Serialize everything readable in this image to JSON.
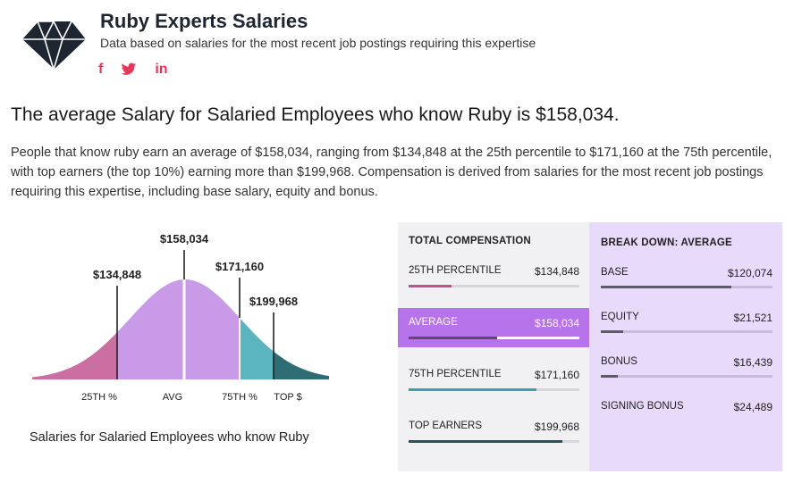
{
  "header": {
    "title": "Ruby Experts Salaries",
    "subtitle": "Data based on salaries for the most recent job postings requiring this expertise",
    "social": [
      {
        "icon": "facebook-icon",
        "glyph": "f"
      },
      {
        "icon": "twitter-icon",
        "glyph": "🐦"
      },
      {
        "icon": "linkedin-icon",
        "glyph": "in"
      }
    ],
    "accent": "#e8355a"
  },
  "headline": "The average Salary for Salaried Employees who know Ruby is $158,034.",
  "paragraph": "People that know ruby earn an average of $158,034, ranging from $134,848 at the 25th percentile to $171,160 at the 75th percentile, with top earners (the top 10%) earning more than $199,968. Compensation is derived from salaries for the most recent job postings requiring this expertise, including base salary, equity and bonus.",
  "chart_data": {
    "type": "area",
    "markers": [
      {
        "value": 134848,
        "label": "$134,848"
      },
      {
        "value": 158034,
        "label": "$158,034"
      },
      {
        "value": 171160,
        "label": "$171,160"
      },
      {
        "value": 199968,
        "label": "$199,968"
      }
    ],
    "segments": [
      {
        "name": "25TH %",
        "color": "#cb6fa2"
      },
      {
        "name": "AVG",
        "color": "#c89ae8"
      },
      {
        "name": "75TH %",
        "color": "#5ab5c0"
      },
      {
        "name": "TOP $",
        "color": "#2d6d73"
      }
    ],
    "caption": "Salaries for Salaried Employees who know Ruby"
  },
  "total_compensation": {
    "title": "TOTAL COMPENSATION",
    "rows": [
      {
        "label": "25TH PERCENTILE",
        "value": "$134,848",
        "fraction": 0.25,
        "color": "#c2508a",
        "active": false
      },
      {
        "label": "AVERAGE",
        "value": "$158,034",
        "fraction": 0.52,
        "color": "#5b4b6e",
        "active": true
      },
      {
        "label": "75TH PERCENTILE",
        "value": "$171,160",
        "fraction": 0.75,
        "color": "#3aa0ad",
        "active": false
      },
      {
        "label": "TOP EARNERS",
        "value": "$199,968",
        "fraction": 0.9,
        "color": "#24535a",
        "active": false
      }
    ]
  },
  "breakdown": {
    "title": "BREAK DOWN: AVERAGE",
    "rows": [
      {
        "label": "BASE",
        "value": "$120,074",
        "fraction": 0.76,
        "color": "#5d5a6b"
      },
      {
        "label": "EQUITY",
        "value": "$21,521",
        "fraction": 0.13,
        "color": "#5d5a6b"
      },
      {
        "label": "BONUS",
        "value": "$16,439",
        "fraction": 0.1,
        "color": "#5d5a6b"
      },
      {
        "label": "SIGNING BONUS",
        "value": "$24,489",
        "fraction": 0,
        "color": "#5d5a6b"
      }
    ]
  }
}
